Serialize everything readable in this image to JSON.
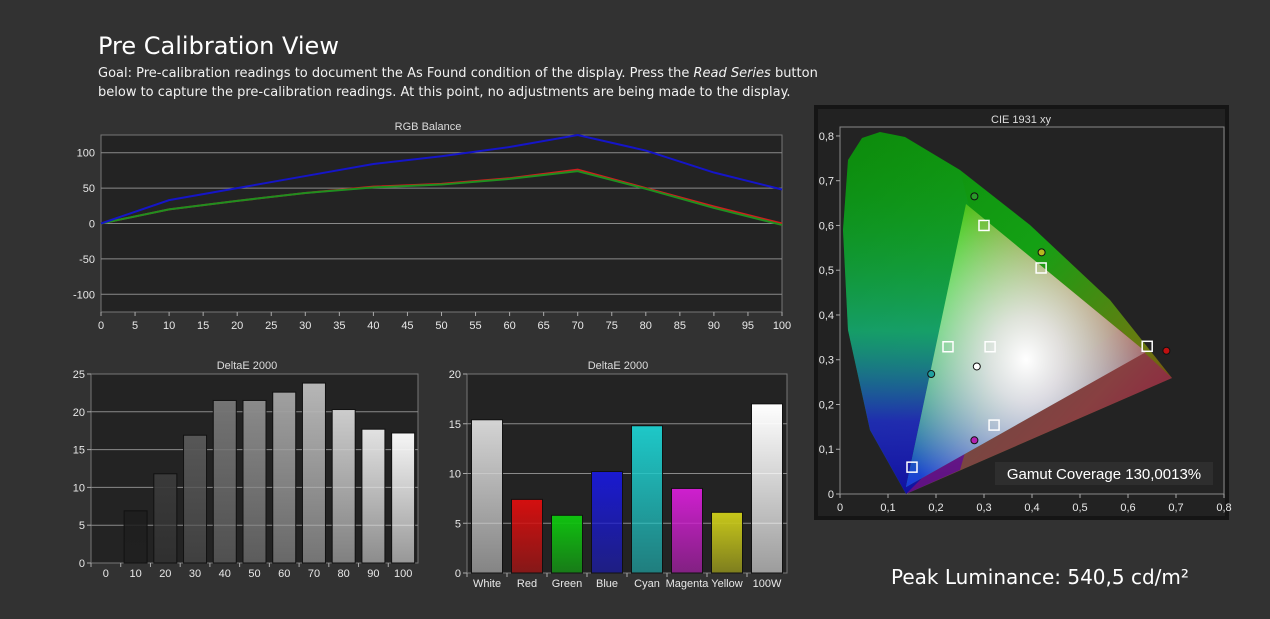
{
  "page": {
    "title": "Pre Calibration View",
    "goal_prefix": "Goal: Pre-calibration readings to document the As Found condition of the display. Press the ",
    "goal_emphasis": "Read Series",
    "goal_suffix": " button below to capture the pre-calibration readings. At this point, no adjustments are being made to the display.",
    "peak_luminance": "Peak Luminance: 540,5 cd/m²"
  },
  "colors": {
    "background": "#323232",
    "plot_background": "#232323",
    "red_series": "#cc1f1f",
    "green_series": "#1f8f1f",
    "blue_series": "#1515c8"
  },
  "chart_data": [
    {
      "type": "line",
      "title": "RGB Balance",
      "x": [
        0,
        10,
        20,
        30,
        40,
        50,
        60,
        70,
        80,
        90,
        100
      ],
      "xticks": [
        "0",
        "5",
        "10",
        "15",
        "20",
        "25",
        "30",
        "35",
        "40",
        "45",
        "50",
        "55",
        "60",
        "65",
        "70",
        "75",
        "80",
        "85",
        "90",
        "95",
        "100"
      ],
      "yticks": [
        "100",
        "50",
        "0",
        "-50",
        "-100"
      ],
      "xlim": [
        0,
        100
      ],
      "ylim": [
        -125,
        125
      ],
      "grid": true,
      "series": [
        {
          "color": "#cc1f1f",
          "values": [
            0,
            20,
            32,
            43,
            52,
            56,
            64,
            76,
            50,
            24,
            0
          ]
        },
        {
          "color": "#1f8f1f",
          "values": [
            0,
            20,
            32,
            43,
            51,
            55,
            63,
            74,
            49,
            22,
            -2
          ]
        },
        {
          "color": "#1515c8",
          "values": [
            0,
            33,
            50,
            67,
            84,
            95,
            108,
            125,
            103,
            72,
            48
          ]
        }
      ]
    },
    {
      "type": "bar",
      "title": "DeltaE 2000",
      "categories": [
        "0",
        "10",
        "20",
        "30",
        "40",
        "50",
        "60",
        "70",
        "80",
        "90",
        "100"
      ],
      "values": [
        0,
        6.9,
        11.8,
        16.9,
        21.5,
        21.5,
        22.6,
        23.8,
        20.3,
        17.7,
        17.2
      ],
      "bar_colors": [
        "#000000",
        "#1e1e1e",
        "#3a3a3a",
        "#575757",
        "#747474",
        "#8a8a8a",
        "#a0a0a0",
        "#b6b6b6",
        "#cccccc",
        "#e2e2e2",
        "#f6f6f6"
      ],
      "yticks": [
        "25",
        "20",
        "15",
        "10",
        "5",
        "0"
      ],
      "ylim": [
        0,
        25
      ],
      "grid": true
    },
    {
      "type": "bar",
      "title": "DeltaE 2000",
      "categories": [
        "White",
        "Red",
        "Green",
        "Blue",
        "Cyan",
        "Magenta",
        "Yellow",
        "100W"
      ],
      "values": [
        15.4,
        7.4,
        5.8,
        10.2,
        14.8,
        8.5,
        6.1,
        17.0
      ],
      "bar_colors": [
        "#d4d4d4",
        "#d40f0f",
        "#0fc20f",
        "#1a1ad0",
        "#1ec8c8",
        "#cf1fcf",
        "#c8c81a",
        "#ffffff"
      ],
      "yticks": [
        "20",
        "15",
        "10",
        "5",
        "0"
      ],
      "ylim": [
        0,
        20
      ],
      "grid": true
    },
    {
      "type": "scatter",
      "title": "CIE 1931 xy",
      "xticks": [
        "0",
        "0,1",
        "0,2",
        "0,3",
        "0,4",
        "0,5",
        "0,6",
        "0,7",
        "0,8"
      ],
      "yticks": [
        "0,8",
        "0,7",
        "0,6",
        "0,5",
        "0,4",
        "0,3",
        "0,2",
        "0,1",
        "0"
      ],
      "xlim": [
        0,
        0.8
      ],
      "ylim": [
        0,
        0.82
      ],
      "target_gamut": [
        [
          0.64,
          0.33
        ],
        [
          0.3,
          0.6
        ],
        [
          0.15,
          0.06
        ]
      ],
      "target_points": [
        {
          "x": 0.64,
          "y": 0.33
        },
        {
          "x": 0.3,
          "y": 0.6
        },
        {
          "x": 0.15,
          "y": 0.06
        },
        {
          "x": 0.225,
          "y": 0.329
        },
        {
          "x": 0.419,
          "y": 0.505
        },
        {
          "x": 0.321,
          "y": 0.154
        },
        {
          "x": 0.3127,
          "y": 0.329
        }
      ],
      "measured_points": [
        {
          "x": 0.68,
          "y": 0.32,
          "color": "#c01010"
        },
        {
          "x": 0.28,
          "y": 0.665,
          "color": "#2a9a2a"
        },
        {
          "x": 0.42,
          "y": 0.54,
          "color": "#b8b820"
        },
        {
          "x": 0.19,
          "y": 0.268,
          "color": "#20a0a0"
        },
        {
          "x": 0.28,
          "y": 0.12,
          "color": "#b020b0"
        },
        {
          "x": 0.285,
          "y": 0.285,
          "color": "#ffffff"
        }
      ],
      "annotation": "Gamut Coverage 130,0013%"
    }
  ]
}
